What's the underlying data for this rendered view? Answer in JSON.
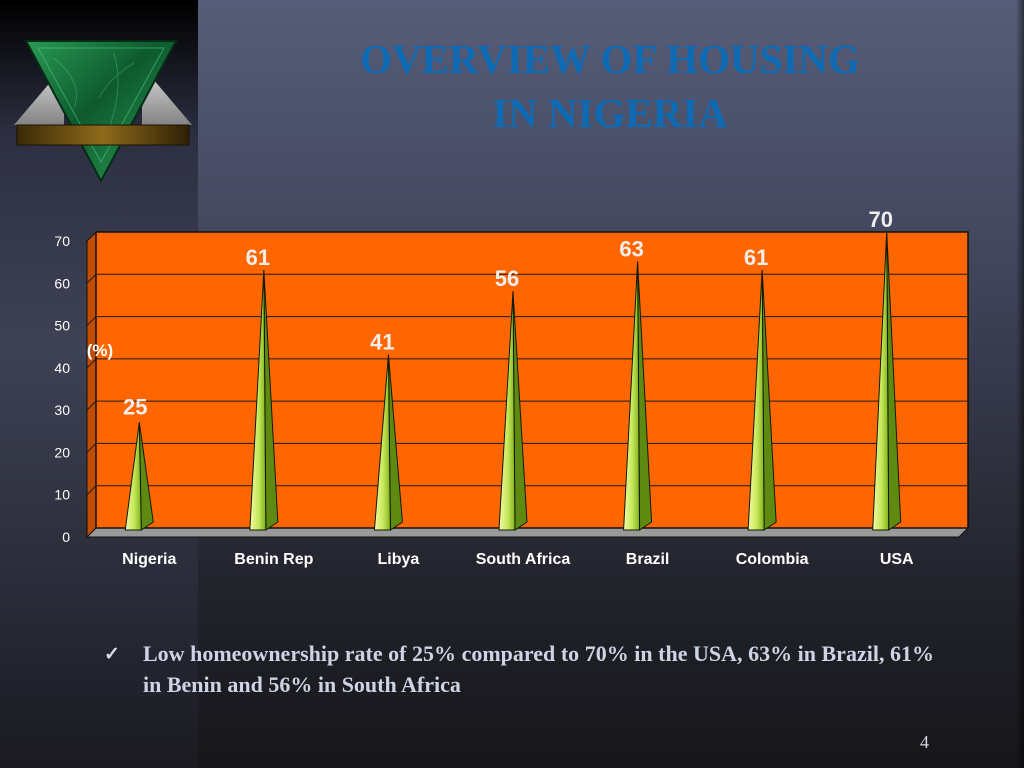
{
  "slide": {
    "title_line1": "OVERVIEW OF HOUSING",
    "title_line2": "IN NIGERIA",
    "bullet_mark": "✓",
    "bullet_text": "Low homeownership rate of 25% compared to 70% in the USA, 63% in Brazil, 61% in Benin and 56% in South Africa",
    "page_number": "4"
  },
  "colors": {
    "title": "#0f6ab4",
    "plot_fill": "#ff6600",
    "spike_light": "#f3fba8",
    "spike_dark": "#7fb21a",
    "data_label": "#eeeeee",
    "ylabel": "#ffffff"
  },
  "chart_data": {
    "type": "bar",
    "bar_shape": "cone-spike",
    "categories": [
      "Nigeria",
      "Benin Rep",
      "Libya",
      "South Africa",
      "Brazil",
      "Colombia",
      "USA"
    ],
    "values": [
      25,
      61,
      41,
      56,
      63,
      61,
      70
    ],
    "data_labels": [
      "25",
      "61",
      "41",
      "56",
      "63",
      "61",
      "70"
    ],
    "ylabel": "(%)",
    "ylim": [
      0,
      70
    ],
    "yticks": [
      0,
      10,
      20,
      30,
      40,
      50,
      60,
      70
    ],
    "grid": true,
    "legend": "none"
  }
}
